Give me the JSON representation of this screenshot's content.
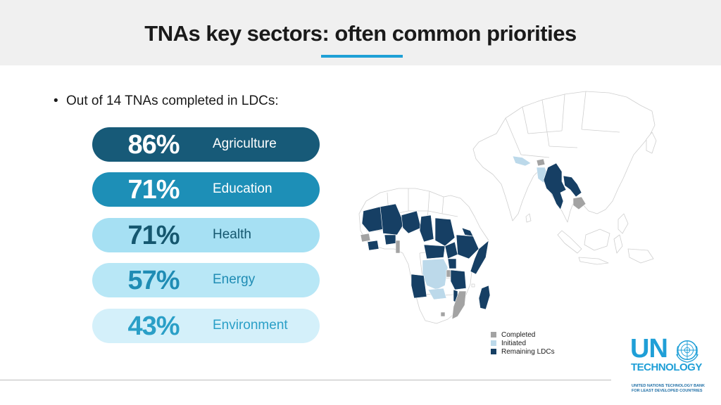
{
  "header": {
    "title": "TNAs key sectors: often common priorities"
  },
  "bullet": {
    "marker": "•",
    "text": "Out of 14 TNAs completed in LDCs:"
  },
  "sectors": [
    {
      "percent": "86%",
      "label": "Agriculture",
      "value": 86,
      "bg": "#175a78",
      "pct_color": "#ffffff",
      "label_color": "#ffffff"
    },
    {
      "percent": "71%",
      "label": "Education",
      "value": 71,
      "bg": "#1d8fb7",
      "pct_color": "#ffffff",
      "label_color": "#ffffff"
    },
    {
      "percent": "71%",
      "label": "Health",
      "value": 71,
      "bg": "#a6e0f3",
      "pct_color": "#15576f",
      "label_color": "#15576f"
    },
    {
      "percent": "57%",
      "label": "Energy",
      "value": 57,
      "bg": "#b8e7f6",
      "pct_color": "#1f8cb4",
      "label_color": "#1f8cb4"
    },
    {
      "percent": "43%",
      "label": "Environment",
      "value": 43,
      "bg": "#d4f0fa",
      "pct_color": "#2a9fc7",
      "label_color": "#2a9fc7"
    }
  ],
  "map": {
    "colors": {
      "completed": "#a3a3a3",
      "initiated": "#bcd9ea",
      "remaining": "#163f64",
      "other": "#ffffff",
      "border": "#cfcfcf"
    }
  },
  "legend": {
    "items": [
      {
        "label": "Completed",
        "color": "#a3a3a3"
      },
      {
        "label": "Initiated",
        "color": "#bcd9ea"
      },
      {
        "label": "Remaining LDCs",
        "color": "#163f64"
      }
    ]
  },
  "logo": {
    "un": "UN",
    "technology": "TECHNOLOGY",
    "sub_line1": "UNITED NATIONS TECHNOLOGY BANK",
    "sub_line2": "FOR LEAST DEVELOPED COUNTRIES"
  }
}
